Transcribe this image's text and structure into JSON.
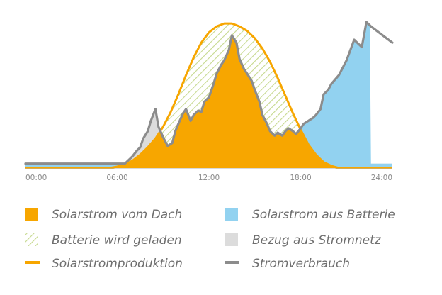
{
  "chart_data": {
    "type": "area",
    "title": "",
    "xlabel": "",
    "ylabel": "",
    "xlim": [
      0,
      24
    ],
    "ylim": [
      0,
      100
    ],
    "grid": false,
    "x_ticks": [
      "00:00",
      "06:00",
      "12:00",
      "18:00",
      "24:00"
    ],
    "colors": {
      "solar_roof": "#f7a600",
      "battery_out": "#92d2f0",
      "battery_charging_hatch": "#c6d98e",
      "grid_import": "#dcdcdc",
      "solar_production_line": "#f7a600",
      "consumption_line": "#8c8c8c",
      "axis": "#b0b0b0"
    },
    "series": [
      {
        "name": "Solarstromproduktion",
        "x": [
          0,
          5.5,
          6,
          6.5,
          7,
          7.5,
          8,
          8.5,
          9,
          9.5,
          10,
          10.5,
          11,
          11.5,
          12,
          12.5,
          13,
          13.5,
          14,
          14.5,
          15,
          15.5,
          16,
          16.5,
          17,
          17.5,
          18,
          18.5,
          19,
          19.5,
          20,
          20.5,
          24
        ],
        "values": [
          0,
          0,
          1,
          2.5,
          5,
          9,
          14,
          20,
          28,
          38,
          50,
          63,
          75,
          85,
          92,
          96,
          98,
          98,
          96,
          93,
          88,
          81,
          72,
          61,
          49,
          37,
          26,
          16,
          9,
          4,
          1.5,
          0,
          0
        ]
      },
      {
        "name": "Stromverbrauch",
        "x": [
          0,
          6.5,
          7,
          7.3,
          7.5,
          7.7,
          8,
          8.2,
          8.5,
          8.7,
          9,
          9.3,
          9.6,
          9.8,
          10,
          10.3,
          10.5,
          10.8,
          11,
          11.3,
          11.5,
          11.7,
          12,
          12.3,
          12.5,
          12.8,
          13,
          13.3,
          13.5,
          13.8,
          14,
          14.3,
          14.5,
          14.8,
          15,
          15.3,
          15.5,
          15.8,
          16,
          16.3,
          16.5,
          16.8,
          17,
          17.2,
          17.5,
          17.7,
          18,
          18.2,
          18.5,
          18.8,
          19,
          19.3,
          19.5,
          19.8,
          20,
          20.5,
          21,
          21.5,
          22,
          22.3,
          22.6,
          24
        ],
        "values": [
          3,
          3,
          8,
          12,
          14,
          20,
          25,
          32,
          40,
          28,
          21,
          15,
          17,
          25,
          30,
          37,
          40,
          32,
          36,
          39,
          38,
          45,
          48,
          57,
          64,
          70,
          73,
          80,
          90,
          85,
          74,
          67,
          64,
          59,
          53,
          45,
          36,
          30,
          25,
          22,
          24,
          22,
          25,
          27,
          25,
          23,
          27,
          30,
          32,
          34,
          36,
          40,
          50,
          53,
          57,
          63,
          73,
          87,
          82,
          99,
          96,
          85
        ]
      }
    ],
    "legend": {
      "placement": "bottom",
      "entries": [
        {
          "label": "Solarstrom vom Dach",
          "swatch": "solid",
          "color": "#f7a600"
        },
        {
          "label": "Solarstrom aus Batterie",
          "swatch": "solid",
          "color": "#92d2f0"
        },
        {
          "label": "Batterie wird geladen",
          "swatch": "hatch",
          "color": "#c6d98e"
        },
        {
          "label": "Bezug aus Stromnetz",
          "swatch": "solid",
          "color": "#dcdcdc"
        },
        {
          "label": "Solarstromproduktion",
          "swatch": "line",
          "color": "#f7a600"
        },
        {
          "label": "Stromverbrauch",
          "swatch": "line",
          "color": "#8c8c8c"
        }
      ]
    }
  }
}
